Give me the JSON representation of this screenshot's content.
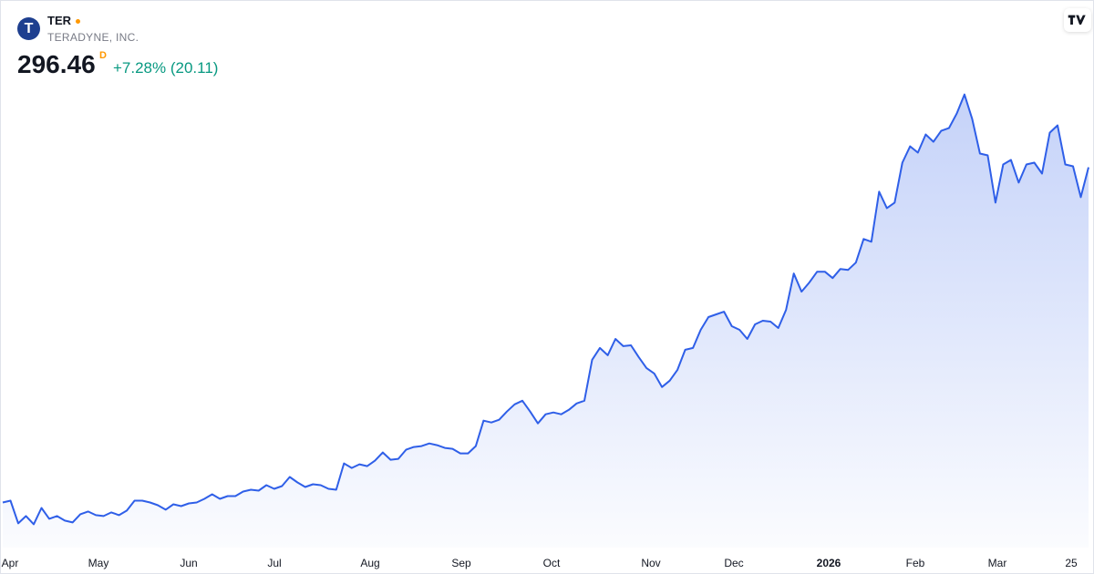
{
  "header": {
    "logo": "T",
    "symbol": "TER",
    "company": "TERADYNE, INC.",
    "price": "296.46",
    "interval": "D",
    "change": "+7.28% (20.11)"
  },
  "chart_data": {
    "type": "area",
    "color": "#2f5fe8",
    "ylim": [
      45.3,
      406.3
    ],
    "xtick_labels": [
      "Apr",
      "May",
      "Jun",
      "Jul",
      "Aug",
      "Sep",
      "Oct",
      "Nov",
      "Dec",
      "2026",
      "Feb",
      "Mar",
      "25"
    ],
    "values": [
      75.1,
      76.3,
      61.3,
      66.1,
      60.7,
      71.5,
      64.3,
      66.1,
      63.1,
      61.9,
      67.3,
      69.1,
      66.7,
      66.1,
      68.5,
      66.7,
      69.7,
      76.3,
      76.3,
      75.1,
      73.3,
      70.3,
      73.9,
      72.7,
      74.5,
      75.1,
      77.5,
      80.5,
      77.5,
      79.3,
      79.3,
      82.3,
      83.5,
      82.9,
      86.5,
      84.1,
      85.9,
      91.9,
      88.3,
      85.3,
      87.1,
      86.5,
      84.1,
      83.5,
      100.9,
      97.9,
      100.3,
      99.1,
      102.7,
      108.1,
      103.3,
      103.9,
      109.9,
      111.7,
      112.3,
      114.1,
      112.9,
      111.1,
      110.5,
      107.5,
      107.5,
      112.3,
      129.1,
      127.9,
      129.7,
      135.1,
      139.9,
      142.3,
      135.1,
      127.3,
      133.3,
      134.5,
      133.3,
      136.3,
      140.5,
      142.3,
      169.3,
      177.1,
      172.3,
      183.1,
      178.3,
      178.9,
      171.1,
      163.9,
      160.3,
      151.3,
      155.5,
      162.7,
      175.9,
      177.1,
      189.1,
      197.5,
      199.3,
      201.1,
      191.5,
      189.1,
      183.1,
      192.7,
      195.1,
      194.5,
      190.3,
      202.3,
      226.3,
      214.3,
      220.3,
      227.5,
      227.5,
      223.3,
      229.3,
      228.7,
      233.5,
      249.1,
      247.3,
      280.3,
      269.5,
      273.1,
      299.5,
      310.3,
      306.1,
      318.1,
      313.3,
      320.5,
      322.3,
      331.9,
      344.5,
      328.3,
      305.5,
      304.3,
      273.1,
      298.3,
      301.3,
      286.3,
      298.3,
      299.5,
      292.3,
      319.3,
      324.1,
      298.3,
      297.1,
      276.7,
      296.46
    ]
  }
}
